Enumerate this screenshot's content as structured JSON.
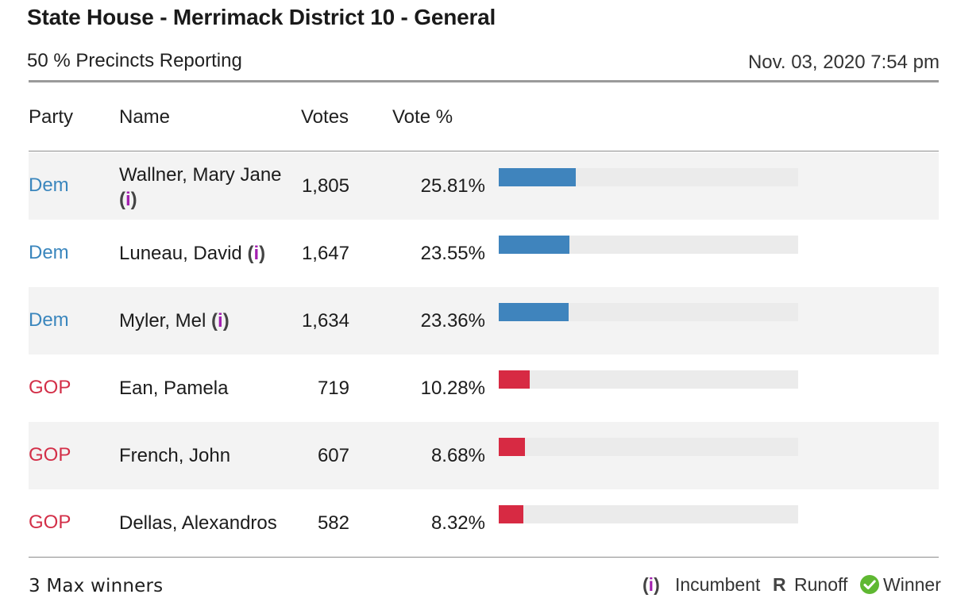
{
  "header": {
    "title": "State House - Merrimack District 10 - General",
    "reporting": "50 % Precincts Reporting",
    "timestamp": "Nov. 03, 2020 7:54 pm"
  },
  "columns": {
    "party": "Party",
    "name": "Name",
    "votes": "Votes",
    "vote_pct": "Vote %"
  },
  "colors": {
    "Dem": "#3a86bd",
    "GOP": "#d32f48",
    "dem_bar": "#3f84bd",
    "gop_bar": "#d72a43",
    "incumbent_i": "#a31fb0",
    "winner_check": "#5fb832"
  },
  "rows": [
    {
      "party": "Dem",
      "name_line1": "Wallner, Mary Jane",
      "name_line2": "",
      "incumbent": true,
      "votes": "1,805",
      "pct_label": "25.81%",
      "pct": 25.81
    },
    {
      "party": "Dem",
      "name_line1": "Luneau, David",
      "name_line2": "",
      "incumbent": true,
      "votes": "1,647",
      "pct_label": "23.55%",
      "pct": 23.55
    },
    {
      "party": "Dem",
      "name_line1": "Myler, Mel",
      "name_line2": "",
      "incumbent": true,
      "votes": "1,634",
      "pct_label": "23.36%",
      "pct": 23.36
    },
    {
      "party": "GOP",
      "name_line1": "Ean, Pamela",
      "name_line2": "",
      "incumbent": false,
      "votes": "719",
      "pct_label": "10.28%",
      "pct": 10.28
    },
    {
      "party": "GOP",
      "name_line1": "French, John",
      "name_line2": "",
      "incumbent": false,
      "votes": "607",
      "pct_label": "8.68%",
      "pct": 8.68
    },
    {
      "party": "GOP",
      "name_line1": "Dellas, Alexandros",
      "name_line2": "",
      "incumbent": false,
      "votes": "582",
      "pct_label": "8.32%",
      "pct": 8.32
    }
  ],
  "incumbent_marker": {
    "open": "(",
    "i": "i",
    "close": ")"
  },
  "footer": {
    "max_winners": "3 Max winners",
    "legend_incumbent": "Incumbent",
    "legend_runoff_mark": "R",
    "legend_runoff": "Runoff",
    "legend_winner": "Winner",
    "winner_icon": "check-circle-icon"
  }
}
